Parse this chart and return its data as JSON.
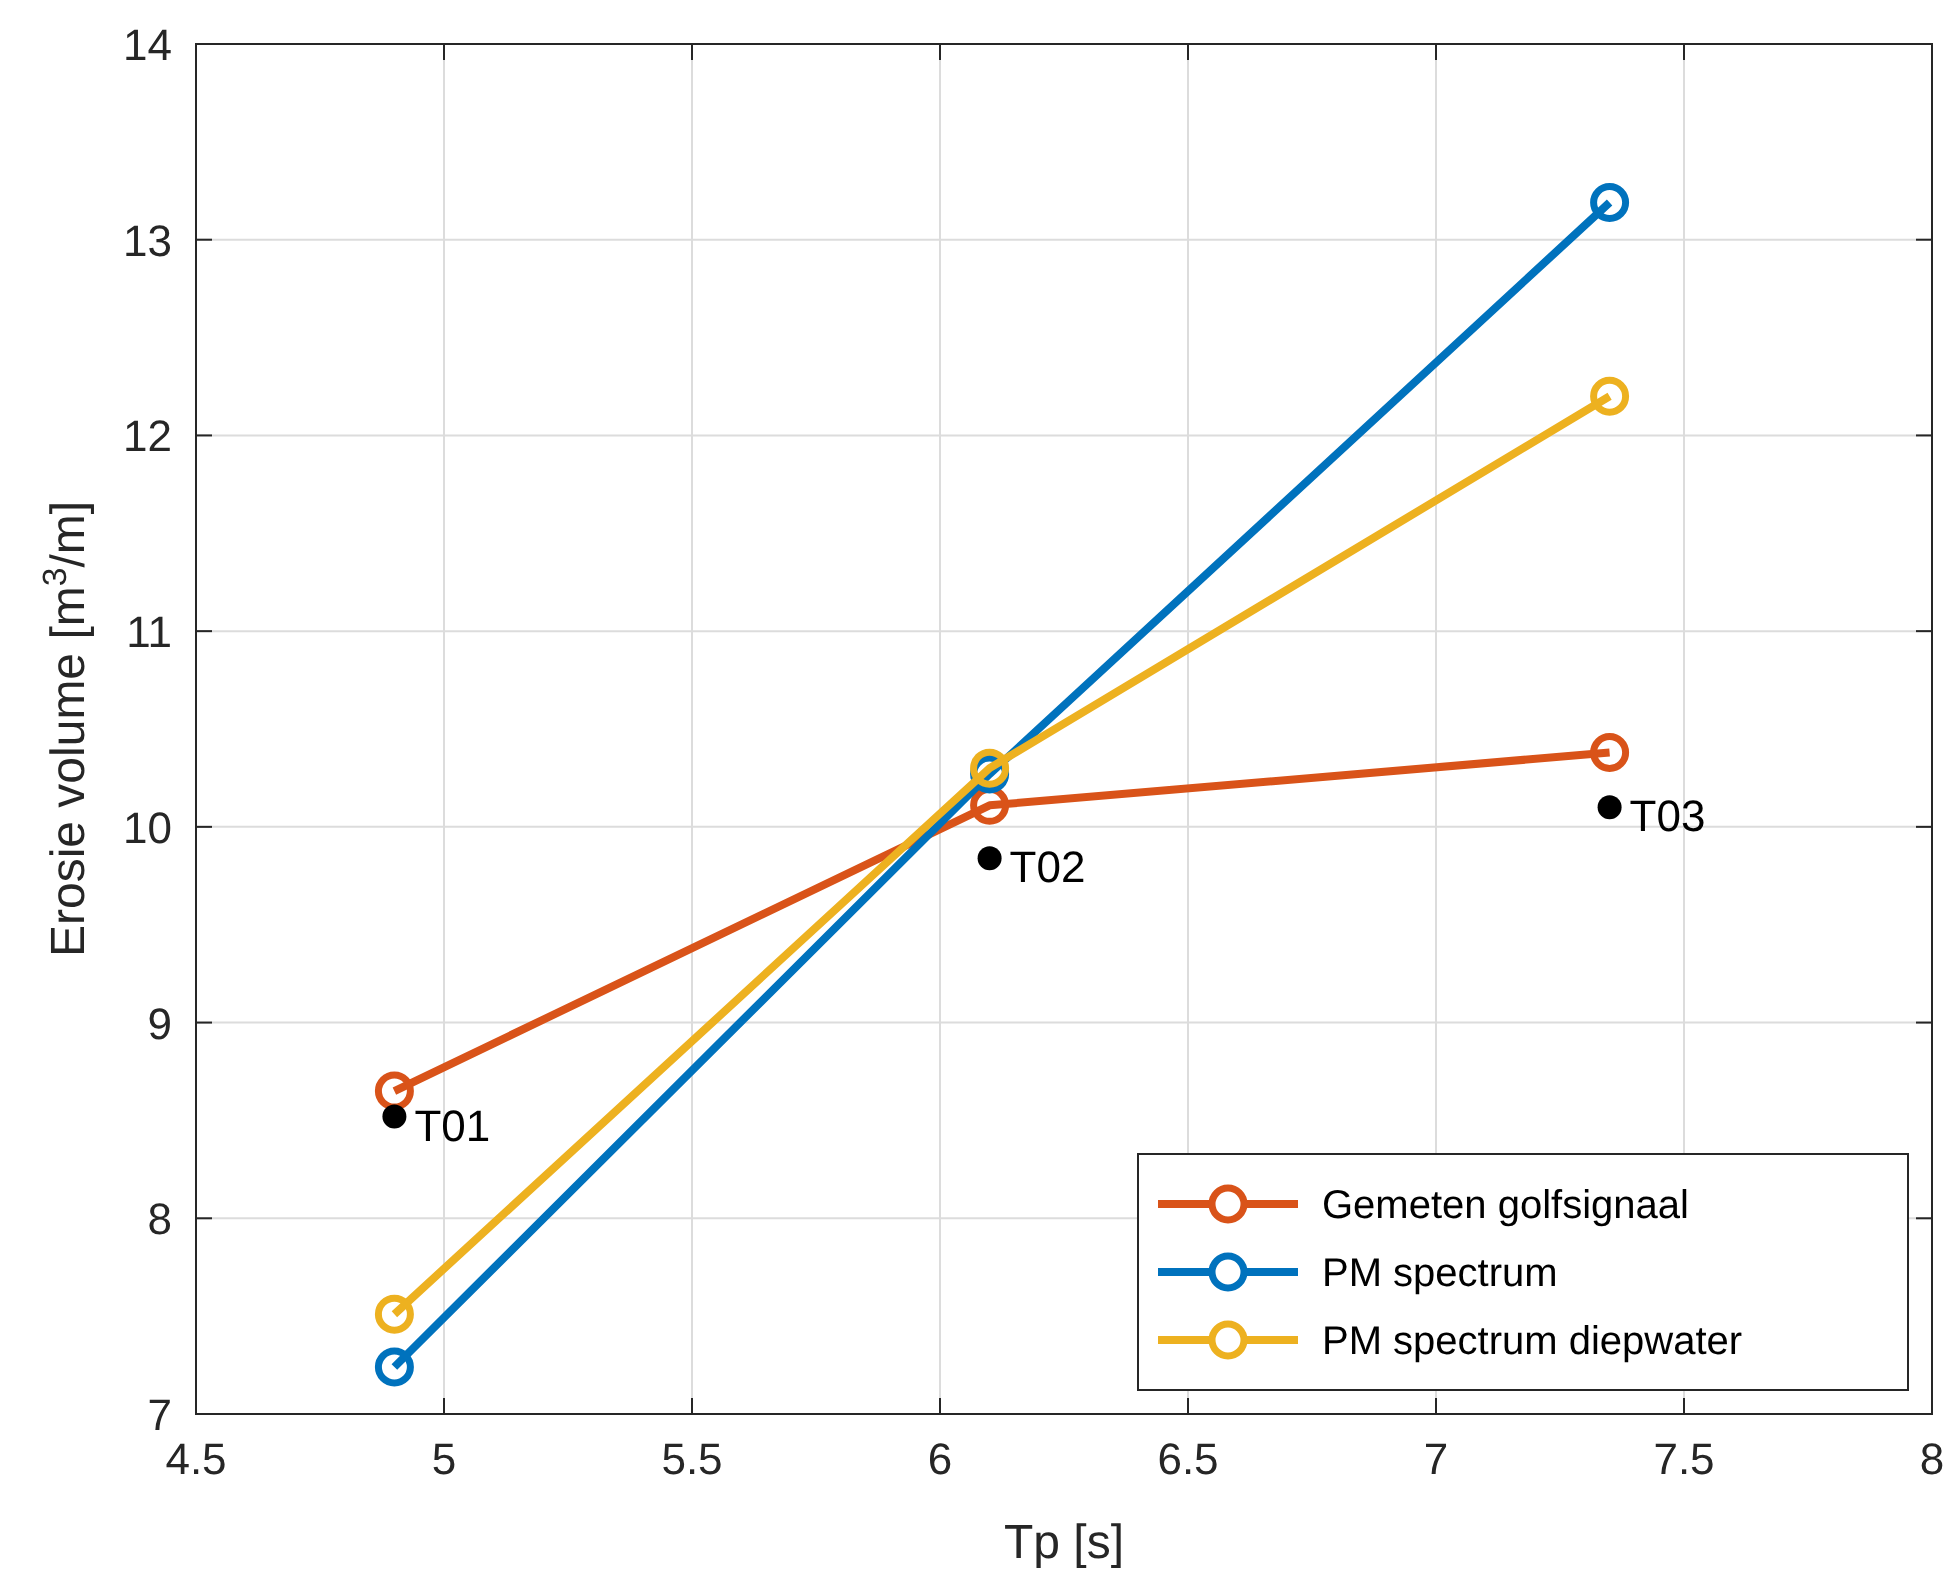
{
  "chart_data": {
    "type": "line",
    "xlabel": "Tp [s]",
    "ylabel": "Erosie volume [m$^{3}$/m]",
    "x": [
      4.9,
      6.1,
      7.35
    ],
    "series": [
      {
        "name": "Gemeten golfsignaal",
        "color": "#d95319",
        "values": [
          8.65,
          10.11,
          10.38
        ]
      },
      {
        "name": "PM spectrum",
        "color": "#0072bd",
        "values": [
          7.24,
          10.27,
          13.19
        ]
      },
      {
        "name": "PM spectrum diepwater",
        "color": "#edb120",
        "values": [
          7.51,
          10.3,
          12.2
        ]
      },
      {
        "type": "scatter",
        "color": "#000000",
        "values": [
          8.52,
          9.84,
          10.1
        ]
      }
    ],
    "annotations": [
      {
        "text": "T01",
        "x": 4.9,
        "y": 8.52
      },
      {
        "text": "T02",
        "x": 6.1,
        "y": 9.84
      },
      {
        "text": "T03",
        "x": 7.35,
        "y": 10.1
      }
    ],
    "xlim": [
      4.5,
      8
    ],
    "xticks": [
      4.5,
      5,
      5.5,
      6,
      6.5,
      7,
      7.5,
      8
    ],
    "ylim": [
      7,
      14
    ],
    "yticks": [
      7,
      8,
      9,
      10,
      11,
      12,
      13,
      14
    ],
    "grid": true,
    "legend": "bottom right",
    "marker": "circle",
    "line_style": "solid"
  }
}
